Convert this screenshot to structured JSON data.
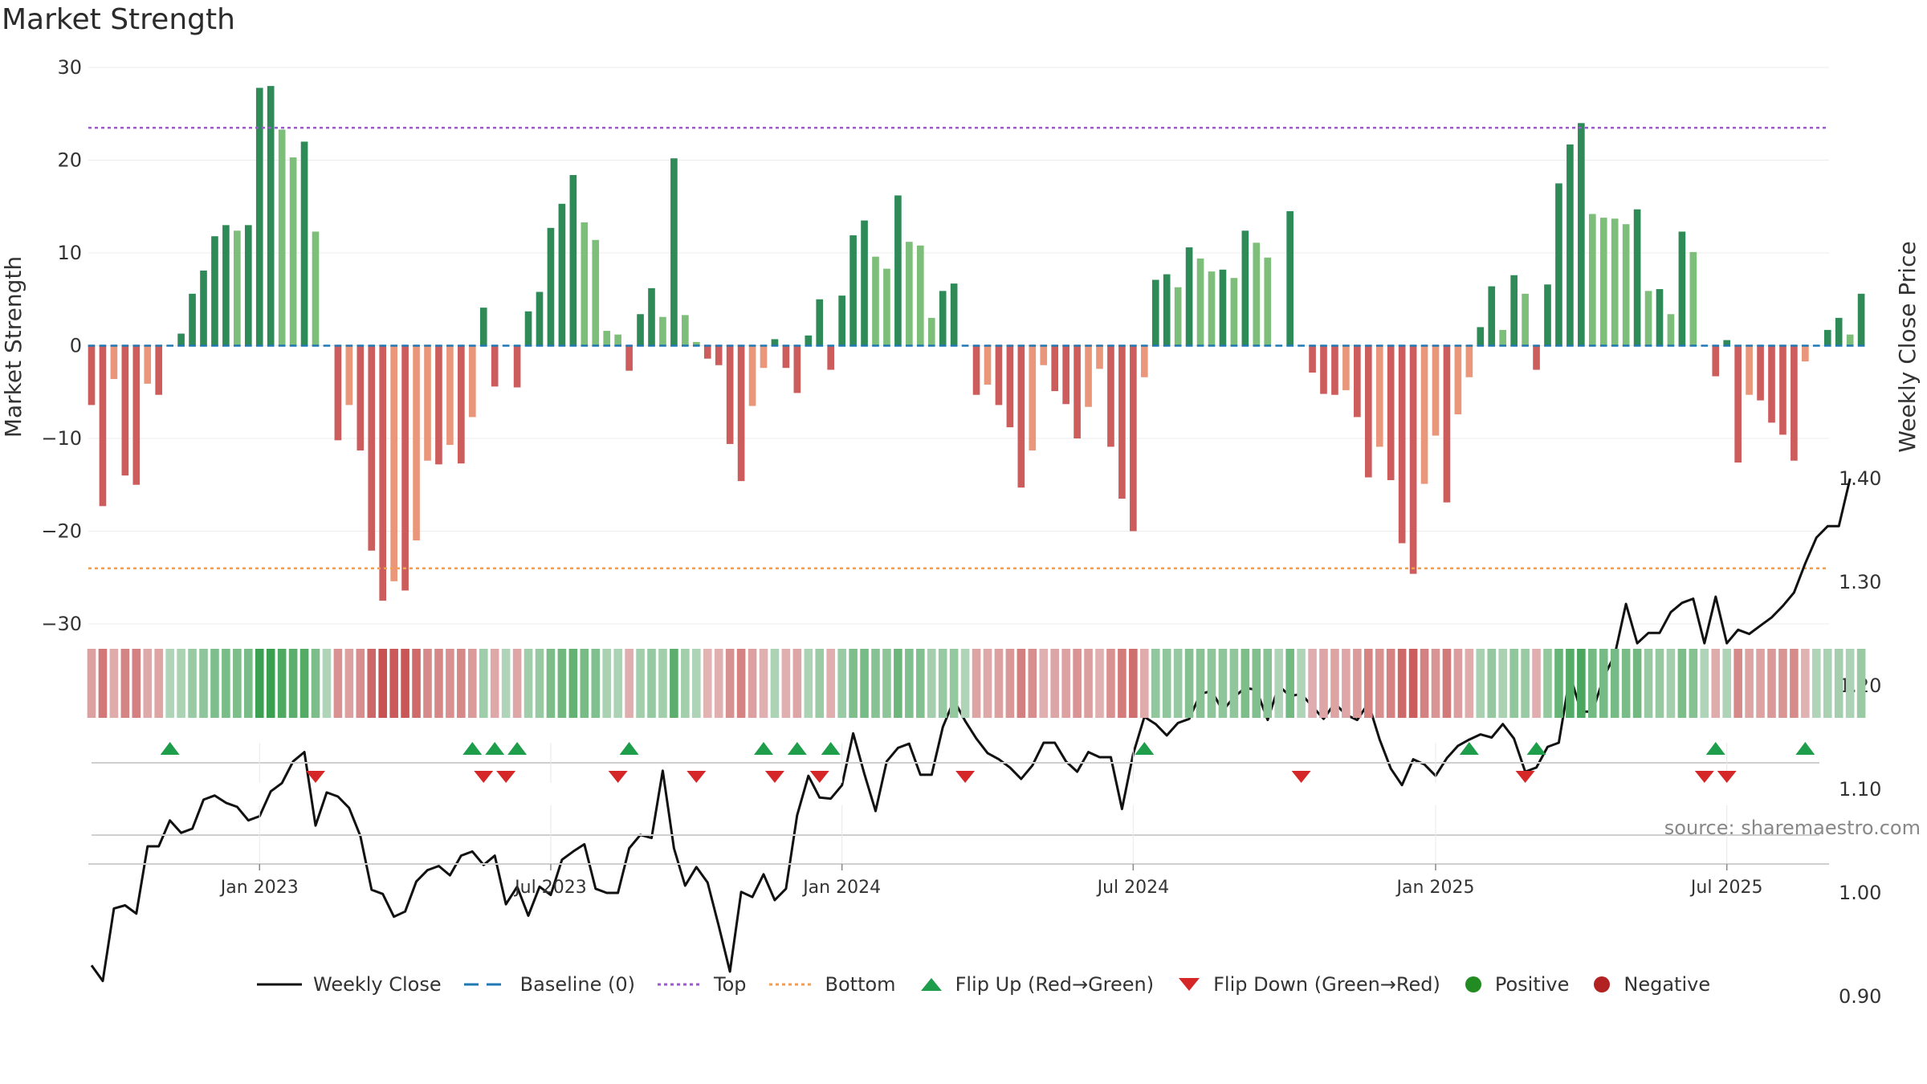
{
  "chart_data": {
    "type": "bar",
    "title": "Market Strength",
    "ylabel": "Market Strength",
    "y2label": "Weekly Close Price",
    "ylim": [
      -30,
      30
    ],
    "yticks": [
      30,
      20,
      10,
      0,
      -10,
      -20,
      -30
    ],
    "y2lim": [
      0.88,
      1.42
    ],
    "y2ticks": [
      "1.40",
      "1.30",
      "1.20",
      "1.10",
      "1.00",
      "0.90"
    ],
    "top_level": 23.5,
    "bottom_level": -24,
    "xticks": [
      {
        "label": "Jan 2023",
        "week": 15
      },
      {
        "label": "Jul 2023",
        "week": 41
      },
      {
        "label": "Jan 2024",
        "week": 67
      },
      {
        "label": "Jul 2024",
        "week": 93
      },
      {
        "label": "Jan 2025",
        "week": 120
      },
      {
        "label": "Jul 2025",
        "week": 146
      }
    ],
    "strength": [
      -6.4,
      -17.3,
      -3.6,
      -14,
      -15,
      -4.1,
      -5.3,
      0,
      1.3,
      5.6,
      8.1,
      11.8,
      13,
      12.4,
      13,
      27.8,
      28,
      23.3,
      20.3,
      22,
      12.3,
      0,
      -10.2,
      -6.4,
      -11.3,
      -22.1,
      -27.5,
      -25.4,
      -26.4,
      -21,
      -12.4,
      -12.8,
      -10.7,
      -12.7,
      -7.7,
      4.1,
      -4.4,
      0,
      -4.5,
      3.7,
      5.8,
      12.7,
      15.3,
      18.4,
      13.3,
      11.4,
      1.6,
      1.2,
      -2.7,
      3.4,
      6.2,
      3.1,
      20.2,
      3.3,
      0.4,
      -1.4,
      -2.1,
      -10.6,
      -14.6,
      -6.5,
      -2.4,
      0.7,
      -2.4,
      -5.1,
      1.1,
      5,
      -2.6,
      5.4,
      11.9,
      13.5,
      9.6,
      8.3,
      16.2,
      11.2,
      10.8,
      3,
      5.9,
      6.7,
      0,
      -5.3,
      -4.2,
      -6.4,
      -8.8,
      -15.3,
      -11.3,
      -2.1,
      -4.9,
      -6.3,
      -10,
      -6.6,
      -2.5,
      -10.9,
      -16.5,
      -20,
      -3.4,
      7.1,
      7.7,
      6.3,
      10.6,
      9.4,
      8,
      8.2,
      7.3,
      12.4,
      11.1,
      9.5,
      0,
      14.5,
      0,
      -2.9,
      -5.2,
      -5.3,
      -4.8,
      -7.7,
      -14.2,
      -10.9,
      -14.5,
      -21.3,
      -24.6,
      -14.9,
      -9.7,
      -16.9,
      -7.4,
      -3.4,
      2,
      6.4,
      1.7,
      7.6,
      5.6,
      -2.6,
      6.6,
      17.5,
      21.7,
      24,
      14.2,
      13.8,
      13.7,
      13.1,
      14.7,
      5.9,
      6.1,
      3.4,
      12.3,
      10.1,
      0,
      -3.3,
      0.6,
      -12.6,
      -5.3,
      -5.9,
      -8.3,
      -9.6,
      -12.4,
      -1.7,
      0,
      1.7,
      3,
      1.2,
      5.6
    ],
    "weekly_close": [
      0.93,
      0.915,
      0.985,
      0.988,
      0.98,
      1.045,
      1.045,
      1.07,
      1.058,
      1.062,
      1.09,
      1.094,
      1.087,
      1.083,
      1.07,
      1.074,
      1.098,
      1.106,
      1.127,
      1.136,
      1.065,
      1.097,
      1.093,
      1.082,
      1.055,
      1.003,
      0.999,
      0.977,
      0.982,
      1.011,
      1.022,
      1.026,
      1.017,
      1.036,
      1.04,
      1.027,
      1.036,
      0.989,
      1.006,
      0.978,
      1.006,
      0.998,
      1.032,
      1.04,
      1.047,
      1.004,
      1,
      1,
      1.043,
      1.056,
      1.053,
      1.118,
      1.043,
      1.007,
      1.025,
      1.01,
      0.968,
      0.924,
      1.001,
      0.996,
      1.018,
      0.993,
      1.004,
      1.075,
      1.113,
      1.092,
      1.091,
      1.104,
      1.154,
      1.115,
      1.079,
      1.127,
      1.14,
      1.144,
      1.114,
      1.114,
      1.16,
      1.186,
      1.166,
      1.149,
      1.135,
      1.129,
      1.121,
      1.11,
      1.123,
      1.145,
      1.145,
      1.127,
      1.117,
      1.136,
      1.131,
      1.131,
      1.081,
      1.134,
      1.17,
      1.163,
      1.152,
      1.164,
      1.168,
      1.192,
      1.195,
      1.176,
      1.189,
      1.198,
      1.196,
      1.167,
      1.2,
      1.19,
      1.192,
      1.18,
      1.168,
      1.183,
      1.172,
      1.167,
      1.183,
      1.148,
      1.12,
      1.104,
      1.129,
      1.124,
      1.113,
      1.13,
      1.142,
      1.148,
      1.153,
      1.15,
      1.163,
      1.149,
      1.117,
      1.121,
      1.141,
      1.145,
      1.21,
      1.175,
      1.175,
      1.208,
      1.23,
      1.279,
      1.241,
      1.251,
      1.251,
      1.271,
      1.28,
      1.284,
      1.241,
      1.286,
      1.241,
      1.254,
      1.25,
      1.258,
      1.266,
      1.277,
      1.29,
      1.318,
      1.343,
      1.354,
      1.354,
      1.4
    ],
    "flip_up_weeks": [
      7,
      34,
      36,
      38,
      48,
      60,
      63,
      66,
      94,
      123,
      129,
      145,
      153
    ],
    "flip_down_weeks": [
      20,
      35,
      37,
      47,
      54,
      61,
      65,
      78,
      108,
      128,
      144,
      146
    ],
    "legend": [
      "Weekly Close",
      "Baseline (0)",
      "Top",
      "Bottom",
      "Flip Up (Red→Green)",
      "Flip Down (Green→Red)",
      "Positive",
      "Negative"
    ],
    "colors": {
      "pos_strong": "#2e8b57",
      "pos_weak": "#7dbf7a",
      "neg_strong": "#cd5c5c",
      "neg_weak": "#e9967a",
      "top": "#9b59d0",
      "bottom": "#f0a050",
      "baseline": "#1f77b4",
      "close": "#111111",
      "flip_up": "#1e9e4a",
      "flip_down": "#d62728",
      "positive": "#228b22",
      "negative": "#b22222"
    }
  },
  "source": "source: sharemaestro.com"
}
